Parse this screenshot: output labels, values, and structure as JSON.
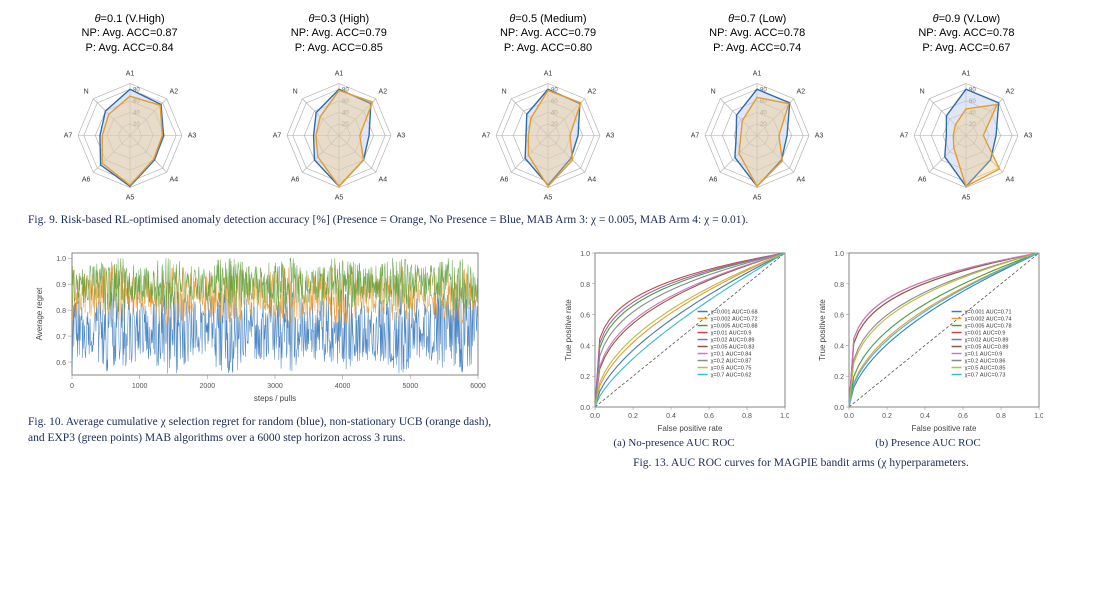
{
  "radar": {
    "axes": [
      "A1",
      "A2",
      "A3",
      "A4",
      "A5",
      "A6",
      "A7",
      "N"
    ],
    "ring_ticks": [
      20,
      40,
      60,
      80
    ],
    "ring_max": 90,
    "grid_color": "#b0b0b0",
    "axis_color": "#aaaaaa",
    "np_stroke": "#2f6bb0",
    "np_fill": "rgba(200,210,235,0.55)",
    "p_stroke": "#e69b2e",
    "p_fill": "rgba(240,200,120,0.35)",
    "label_fontsize": 7,
    "panels": [
      {
        "theta": "0.1",
        "theta_lab": "(V.High)",
        "np_acc": "0.87",
        "p_acc": "0.84",
        "np": [
          80,
          76,
          58,
          60,
          88,
          72,
          52,
          60
        ],
        "p": [
          68,
          74,
          56,
          58,
          86,
          68,
          48,
          52
        ]
      },
      {
        "theta": "0.3",
        "theta_lab": "(High)",
        "np_acc": "0.79",
        "p_acc": "0.85",
        "np": [
          80,
          78,
          52,
          60,
          88,
          60,
          44,
          56
        ],
        "p": [
          78,
          82,
          36,
          60,
          88,
          52,
          40,
          46
        ]
      },
      {
        "theta": "0.5",
        "theta_lab": "(Medium)",
        "np_acc": "0.79",
        "p_acc": "0.80",
        "np": [
          80,
          78,
          52,
          56,
          86,
          56,
          38,
          52
        ],
        "p": [
          78,
          80,
          38,
          60,
          88,
          48,
          34,
          42
        ]
      },
      {
        "theta": "0.7",
        "theta_lab": "(Low)",
        "np_acc": "0.78",
        "p_acc": "0.74",
        "np": [
          80,
          80,
          52,
          60,
          88,
          54,
          36,
          50
        ],
        "p": [
          66,
          78,
          38,
          62,
          88,
          44,
          28,
          36
        ]
      },
      {
        "theta": "0.9",
        "theta_lab": "(V.Low)",
        "np_acc": "0.78",
        "p_acc": "0.67",
        "np": [
          80,
          80,
          52,
          60,
          88,
          52,
          34,
          48
        ],
        "p": [
          46,
          76,
          30,
          82,
          88,
          30,
          22,
          26
        ]
      }
    ]
  },
  "fig9_caption": "Fig. 9.    Risk-based RL-optimised anomaly detection accuracy [%] (Presence = Orange, No Presence = Blue, MAB Arm 3: χ = 0.005, MAB Arm 4: χ = 0.01).",
  "regret": {
    "xlabel": "steps / pulls",
    "ylabel": "Average regret",
    "xlim": [
      0,
      6000
    ],
    "xtick_step": 1000,
    "ylim": [
      0.55,
      1.02
    ],
    "yticks": [
      0.6,
      0.7,
      0.8,
      0.9,
      1.0
    ],
    "series": [
      {
        "name": "random",
        "color": "#3a7abf",
        "base": 0.72,
        "amp": 0.14
      },
      {
        "name": "ns-ucb",
        "color": "#e79a34",
        "base": 0.86,
        "amp": 0.1
      },
      {
        "name": "exp3",
        "color": "#5fa23d",
        "base": 0.9,
        "amp": 0.09
      }
    ]
  },
  "fig10_caption": "Fig. 10.      Average cumulative χ selection regret for random (blue), non-stationary UCB (orange dash), and EXP3 (green points) MAB algorithms over a 6000 step horizon across 3 runs.",
  "roc": {
    "xlabel": "False positive rate",
    "ylabel": "True positive rate",
    "ticks": [
      "0.0",
      "0.2",
      "0.4",
      "0.6",
      "0.8",
      "1.0"
    ],
    "diag_color": "#555",
    "colors": {
      "0.001": "#3a7abf",
      "0.002": "#e79a34",
      "0.005": "#4a9b3e",
      "0.01": "#c9463d",
      "0.02": "#8f6bb7",
      "0.05": "#8a5a44",
      "0.1": "#d376b9",
      "0.2": "#8a8a8a",
      "0.5": "#bdbb3a",
      "0.7": "#3bbacb"
    },
    "panels": [
      {
        "label": "(a) No-presence AUC ROC",
        "legend": [
          {
            "chi": "0.001",
            "auc": "0.68",
            "sharp": 0.38
          },
          {
            "chi": "0.002",
            "auc": "0.72",
            "sharp": 0.46
          },
          {
            "chi": "0.005",
            "auc": "0.88",
            "sharp": 0.74
          },
          {
            "chi": "0.01",
            "auc": "0.9",
            "sharp": 0.78
          },
          {
            "chi": "0.02",
            "auc": "0.89",
            "sharp": 0.76
          },
          {
            "chi": "0.05",
            "auc": "0.83",
            "sharp": 0.62
          },
          {
            "chi": "0.1",
            "auc": "0.84",
            "sharp": 0.64
          },
          {
            "chi": "0.2",
            "auc": "0.87",
            "sharp": 0.7
          },
          {
            "chi": "0.5",
            "auc": "0.75",
            "sharp": 0.5
          },
          {
            "chi": "0.7",
            "auc": "0.62",
            "sharp": 0.28
          }
        ]
      },
      {
        "label": "(b) Presence AUC ROC",
        "legend": [
          {
            "chi": "0.001",
            "auc": "0.71",
            "sharp": 0.44
          },
          {
            "chi": "0.002",
            "auc": "0.74",
            "sharp": 0.5
          },
          {
            "chi": "0.005",
            "auc": "0.78",
            "sharp": 0.56
          },
          {
            "chi": "0.01",
            "auc": "0.9",
            "sharp": 0.78
          },
          {
            "chi": "0.02",
            "auc": "0.89",
            "sharp": 0.76
          },
          {
            "chi": "0.05",
            "auc": "0.89",
            "sharp": 0.76
          },
          {
            "chi": "0.1",
            "auc": "0.9",
            "sharp": 0.78
          },
          {
            "chi": "0.2",
            "auc": "0.86",
            "sharp": 0.68
          },
          {
            "chi": "0.5",
            "auc": "0.85",
            "sharp": 0.66
          },
          {
            "chi": "0.7",
            "auc": "0.73",
            "sharp": 0.48
          }
        ]
      }
    ]
  },
  "fig13_caption": "Fig. 13.   AUC ROC curves for MAGPIE bandit arms (χ hyperparameters."
}
